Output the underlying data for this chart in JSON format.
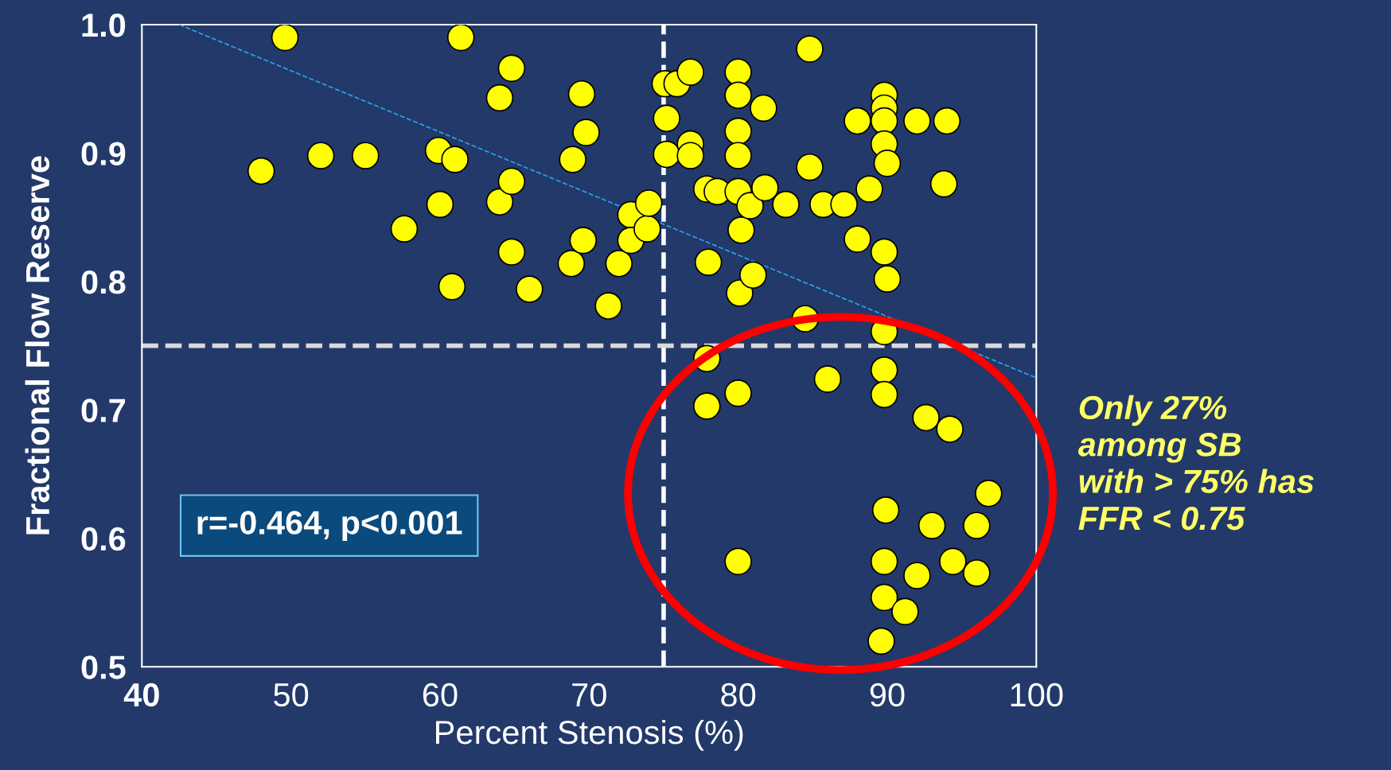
{
  "chart_data": {
    "type": "scatter",
    "xlabel": "Percent Stenosis (%)",
    "ylabel": "Fractional Flow Reserve",
    "xlim": [
      40,
      100
    ],
    "ylim": [
      0.5,
      1.0
    ],
    "xticks": [
      40,
      50,
      60,
      70,
      80,
      90,
      100
    ],
    "yticks": [
      0.5,
      0.6,
      0.7,
      0.8,
      0.9,
      {
        "value": 1.0,
        "label": "1.0"
      }
    ],
    "grid": false,
    "legend": false,
    "series": [
      {
        "color": "#ffff00",
        "marker": "circle",
        "x": [
          48.0,
          49.6,
          52.0,
          55.0,
          57.6,
          59.9,
          60.0,
          61.0,
          60.8,
          61.4,
          64.0,
          64.0,
          64.8,
          64.8,
          64.8,
          66.0,
          68.8,
          68.9,
          69.5,
          69.8,
          69.6,
          71.3,
          72.0,
          72.8,
          72.8,
          73.9,
          74.0,
          75.1,
          75.9,
          76.8,
          75.2,
          75.2,
          76.8,
          76.8,
          77.9,
          78.6,
          78.0,
          80.0,
          80.0,
          80.0,
          80.0,
          80.0,
          80.2,
          80.1,
          80.8,
          81.0,
          81.8,
          81.7,
          83.2,
          84.8,
          84.8,
          84.5,
          85.7,
          87.1,
          88.0,
          88.0,
          88.8,
          89.8,
          89.8,
          89.8,
          89.8,
          90.0,
          89.8,
          90.0,
          92.0,
          94.0,
          93.8,
          77.9,
          77.9,
          80.0,
          86.0,
          89.8,
          89.8,
          89.8,
          92.6,
          94.2,
          96.8,
          89.9,
          93.0,
          96.0,
          80.0,
          89.8,
          94.4,
          96.0,
          92.0,
          89.8,
          91.2,
          89.6
        ],
        "values": [
          0.886,
          0.99,
          0.898,
          0.898,
          0.841,
          0.902,
          0.86,
          0.895,
          0.796,
          0.99,
          0.943,
          0.862,
          0.966,
          0.878,
          0.823,
          0.794,
          0.814,
          0.895,
          0.946,
          0.916,
          0.832,
          0.781,
          0.814,
          0.852,
          0.832,
          0.841,
          0.861,
          0.954,
          0.954,
          0.963,
          0.927,
          0.899,
          0.907,
          0.898,
          0.872,
          0.87,
          0.815,
          0.963,
          0.945,
          0.917,
          0.898,
          0.87,
          0.84,
          0.791,
          0.859,
          0.805,
          0.873,
          0.935,
          0.86,
          0.981,
          0.889,
          0.771,
          0.86,
          0.86,
          0.925,
          0.833,
          0.872,
          0.945,
          0.935,
          0.925,
          0.907,
          0.892,
          0.823,
          0.802,
          0.925,
          0.925,
          0.876,
          0.74,
          0.703,
          0.713,
          0.724,
          0.761,
          0.731,
          0.712,
          0.694,
          0.685,
          0.635,
          0.622,
          0.61,
          0.61,
          0.582,
          0.582,
          0.582,
          0.573,
          0.571,
          0.554,
          0.543,
          0.52
        ]
      },
      {
        "type": "line",
        "color": "#2aa4ec",
        "line_style": "dashed",
        "x": [
          42.5,
          100
        ],
        "values": [
          1.0,
          0.725
        ]
      }
    ],
    "ref_lines": [
      {
        "axis": "x",
        "value": 75,
        "color": "#ffffff",
        "line_style": "dashed"
      },
      {
        "axis": "y",
        "value": 0.75,
        "color": "#d9d9d9",
        "line_style": "dashed"
      }
    ],
    "annotations": [
      "r=-0.464, p<0.001",
      "Only 27%\namong SB\nwith > 75% has\nFFR < 0.75"
    ]
  }
}
